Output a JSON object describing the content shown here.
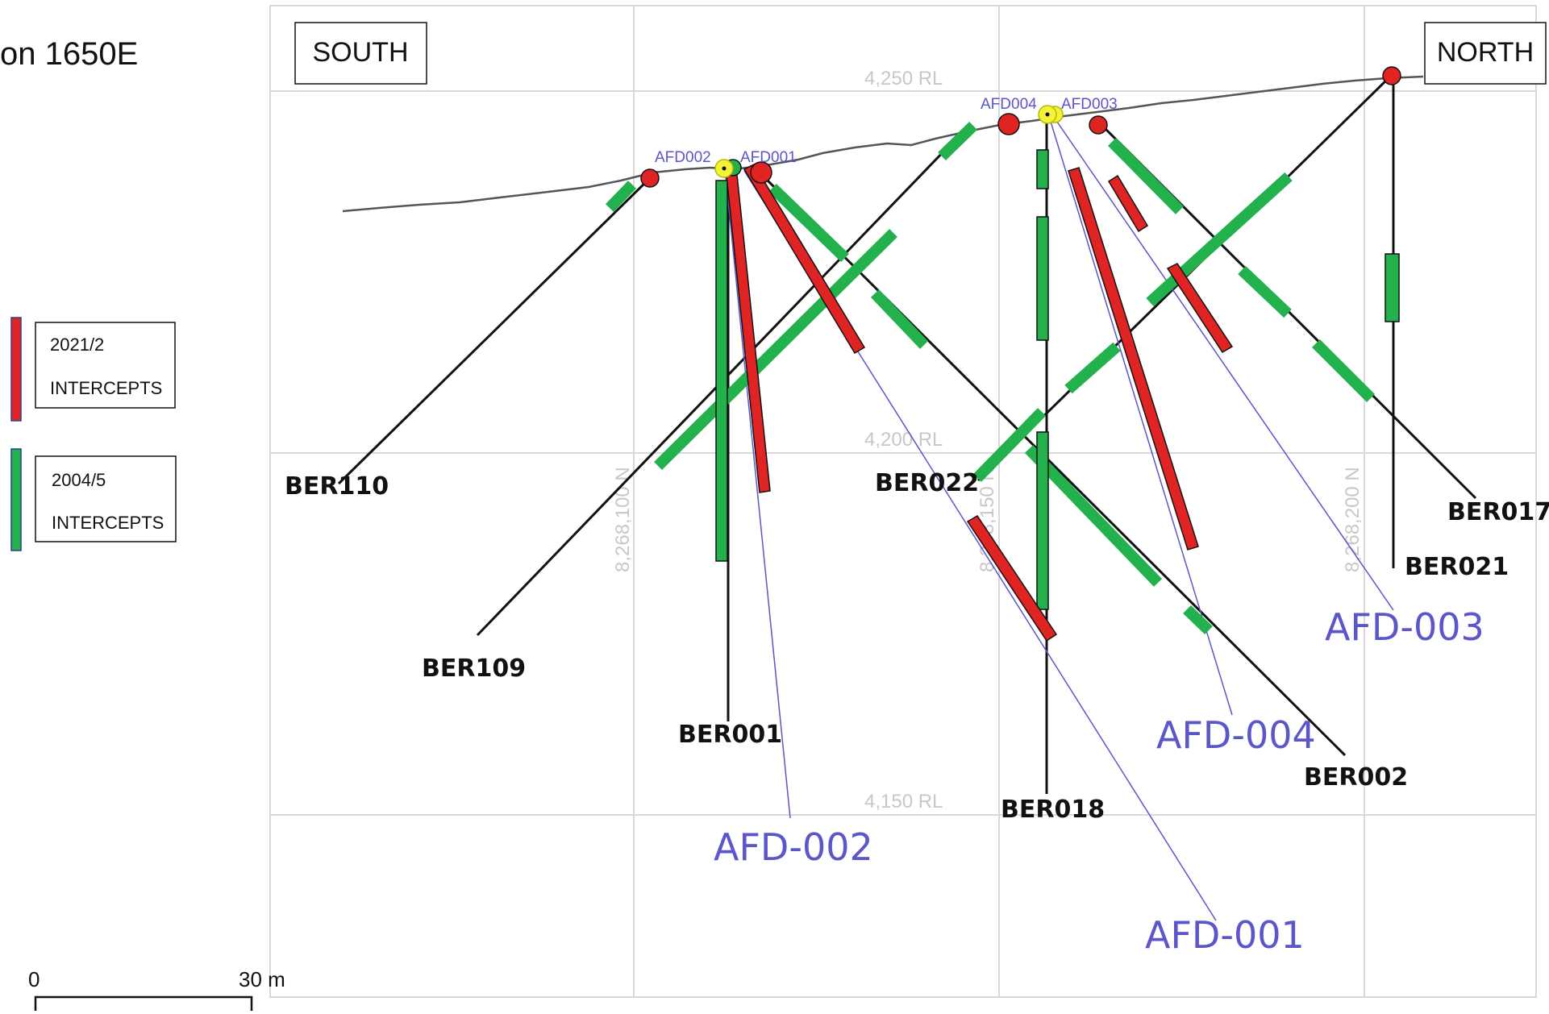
{
  "title": "on 1650E",
  "directions": {
    "south": "SOUTH",
    "north": "NORTH"
  },
  "rl_labels": [
    "4,250 RL",
    "4,200 RL",
    "4,150 RL"
  ],
  "northing_labels": [
    "8,268,100 N",
    "8,268,150 N",
    "8,268,200 N"
  ],
  "legend": {
    "recent": {
      "line1": "2021/2",
      "line2": "INTERCEPTS",
      "color": "#e02424"
    },
    "historic": {
      "line1": "2004/5",
      "line2": "INTERCEPTS",
      "color": "#22b14c"
    }
  },
  "scale": {
    "start": "0",
    "end": "30 m"
  },
  "colors": {
    "recent_intercept": "#e02424",
    "historic_intercept": "#22b14c",
    "afd_trace": "#5b56c9",
    "grid": "#d9d9d9",
    "topography": "#555555",
    "collar_afd": "#f2f23a"
  },
  "holes": {
    "ber110": "BER110",
    "ber109": "BER109",
    "ber001": "BER001",
    "ber022": "BER022",
    "ber018": "BER018",
    "ber002": "BER002",
    "ber017": "BER017",
    "ber021": "BER021"
  },
  "afd_holes": {
    "afd001": "AFD-001",
    "afd002": "AFD-002",
    "afd003": "AFD-003",
    "afd004": "AFD-004"
  },
  "collar_labels": {
    "afd002": "AFD002",
    "afd001": "AFD001",
    "afd004": "AFD004",
    "afd003": "AFD003"
  }
}
